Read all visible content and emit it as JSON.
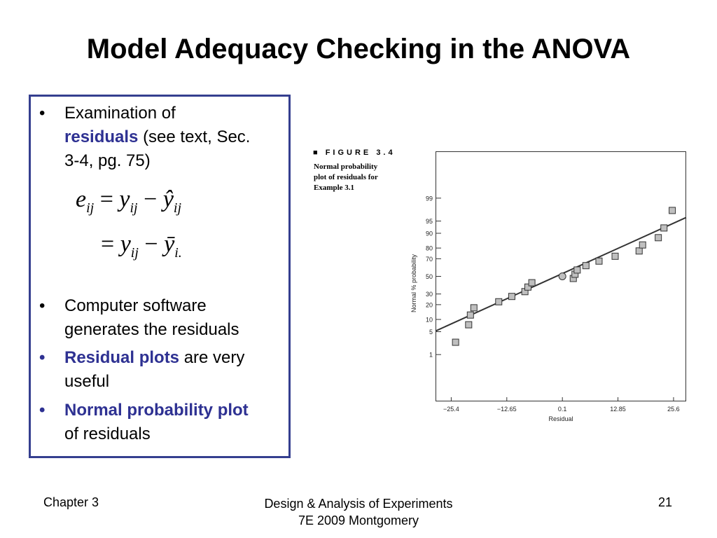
{
  "slide": {
    "title": "Model Adequacy Checking in the ANOVA"
  },
  "bullets": {
    "b1_part1": "Examination of",
    "b1_hl": "residuals",
    "b1_part2": "(see text, Sec.",
    "b1_line3": "3-4, pg. 75)",
    "b2_line1": "Computer software",
    "b2_line2": "generates the residuals",
    "b3_hl": "Residual plots",
    "b3_rest": "are very",
    "b3_line2": "useful",
    "b4_hl": "Normal probability plot",
    "b4_line2": "of residuals",
    "marker": "•"
  },
  "equation": {
    "line1_lhs": "e",
    "line1_lhs_sub": "ij",
    "line1_eq": "=",
    "line1_y": "y",
    "line1_y_sub": "ij",
    "line1_minus": "−",
    "line1_yhat": "ŷ",
    "line1_yhat_sub": "ij",
    "line2_eq": "=",
    "line2_y": "y",
    "line2_y_sub": "ij",
    "line2_minus": "−",
    "line2_ybar": "ȳ",
    "line2_ybar_sub": "i."
  },
  "figure": {
    "heading": "■ FIGURE 3.4",
    "caption_lines": [
      "Normal probability",
      "plot of residuals for",
      "Example 3.1"
    ]
  },
  "chart_data": {
    "type": "scatter",
    "xlabel": "Residual",
    "ylabel": "Normal % probability",
    "x_ticks": [
      "−25.4",
      "−12.65",
      "0.1",
      "12.85",
      "25.6"
    ],
    "x_tick_values": [
      -25.4,
      -12.65,
      0.1,
      12.85,
      25.6
    ],
    "y_ticks": [
      "1",
      "5",
      "10",
      "20",
      "30",
      "50",
      "70",
      "80",
      "90",
      "95",
      "99"
    ],
    "y_tick_values": [
      1,
      5,
      10,
      20,
      30,
      50,
      70,
      80,
      90,
      95,
      99
    ],
    "xlim": [
      -29.0,
      28.5
    ],
    "y_scale": "normal-probability",
    "grid": false,
    "points": [
      {
        "x": -24.4,
        "y": 2.5
      },
      {
        "x": -21.4,
        "y": 7.5
      },
      {
        "x": -21.0,
        "y": 12.5
      },
      {
        "x": -20.2,
        "y": 17.5
      },
      {
        "x": -14.5,
        "y": 22.5
      },
      {
        "x": -11.5,
        "y": 27.5
      },
      {
        "x": -8.5,
        "y": 32.5
      },
      {
        "x": -7.8,
        "y": 37.5
      },
      {
        "x": -6.9,
        "y": 42.5
      },
      {
        "x": 2.6,
        "y": 47.5
      },
      {
        "x": 3.0,
        "y": 52.5
      },
      {
        "x": 3.5,
        "y": 57.5
      },
      {
        "x": 5.5,
        "y": 62.5
      },
      {
        "x": 8.5,
        "y": 67.5
      },
      {
        "x": 12.2,
        "y": 72.5
      },
      {
        "x": 17.7,
        "y": 77.5
      },
      {
        "x": 18.5,
        "y": 82.5
      },
      {
        "x": 22.1,
        "y": 87.5
      },
      {
        "x": 23.4,
        "y": 92.5
      },
      {
        "x": 25.3,
        "y": 97.5
      }
    ],
    "highlight_point": {
      "x": 0.1,
      "y": 50
    },
    "reference_line": {
      "x1": -29.0,
      "y1": 5.2,
      "x2": 28.5,
      "y2": 96.0
    }
  },
  "footer": {
    "left": "Chapter 3",
    "center_line1": "Design & Analysis of Experiments",
    "center_line2": "7E 2009 Montgomery",
    "page": "21"
  }
}
